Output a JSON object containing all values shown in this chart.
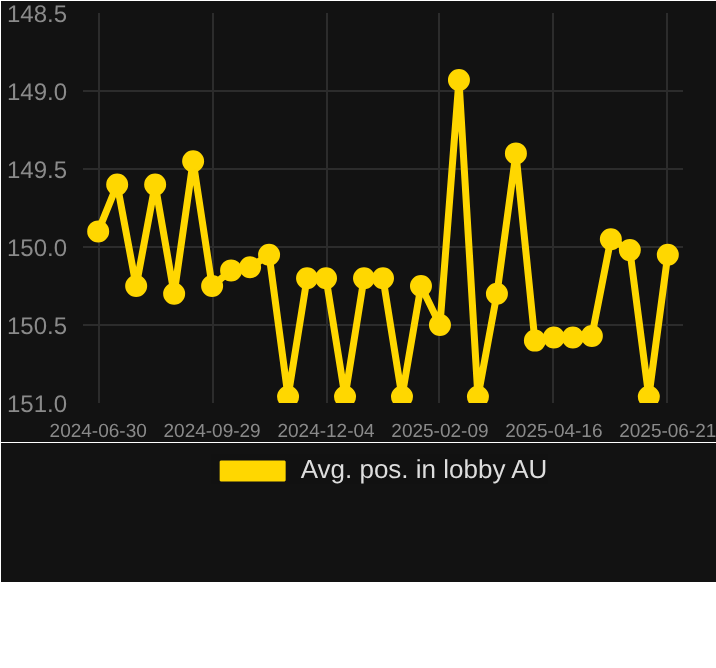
{
  "chart_data": {
    "type": "line",
    "categories": [
      "2024-06-30",
      null,
      null,
      null,
      null,
      null,
      "2024-09-29",
      null,
      null,
      null,
      null,
      null,
      "2024-12-04",
      null,
      null,
      null,
      null,
      null,
      "2025-02-09",
      null,
      null,
      null,
      null,
      null,
      "2025-04-16",
      null,
      null,
      null,
      null,
      null,
      "2025-06-21"
    ],
    "series": [
      {
        "name": "Avg. pos. in lobby AU",
        "color": "#ffd700",
        "values": [
          149.9,
          149.6,
          150.25,
          149.6,
          150.3,
          149.45,
          150.25,
          150.15,
          150.13,
          150.05,
          150.96,
          150.2,
          150.2,
          150.96,
          150.2,
          150.2,
          150.96,
          150.25,
          150.5,
          148.93,
          150.96,
          150.3,
          149.4,
          150.6,
          150.58,
          150.58,
          150.57,
          149.95,
          150.02,
          150.96,
          150.05
        ]
      }
    ],
    "ylim": [
      151.0,
      148.5
    ],
    "yticks": [
      148.5,
      {
        "value": 149.0,
        "label": "149.0"
      },
      149.5,
      {
        "value": 150.0,
        "label": "150.0"
      },
      150.5,
      {
        "value": 151.0,
        "label": "151.0"
      }
    ],
    "grid": true,
    "legend": "bottom",
    "marker": "circle",
    "line_style": "solid"
  }
}
